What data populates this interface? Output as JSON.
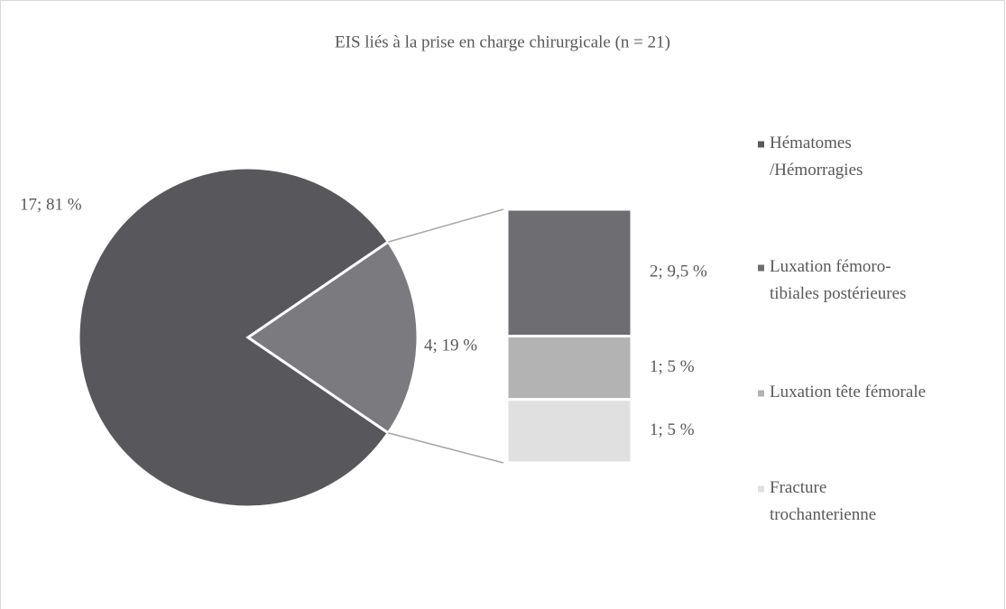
{
  "chart_data": {
    "type": "pie-of-bar",
    "title": "EIS liés à la prise en charge chirurgicale (n = 21)",
    "categories": [
      [
        "Hématomes",
        "/Hémorragies"
      ],
      [
        "Luxation fémoro-",
        "tibiales postérieures"
      ],
      [
        "Luxation tête fémorale"
      ],
      [
        "Fracture",
        "trochanterienne"
      ]
    ],
    "colors": [
      "#58585c",
      "#6e6e72",
      "#b3b3b3",
      "#e0e0e0"
    ],
    "values": [
      17,
      2,
      1,
      1
    ],
    "value_labels": [
      "17; 81 %",
      "2; 9,5 %",
      "1; 5 %",
      "1; 5 %"
    ],
    "other": {
      "value": 4,
      "value_label": "4; 19 %",
      "color": "#7b7b7f"
    },
    "legend": "right"
  }
}
